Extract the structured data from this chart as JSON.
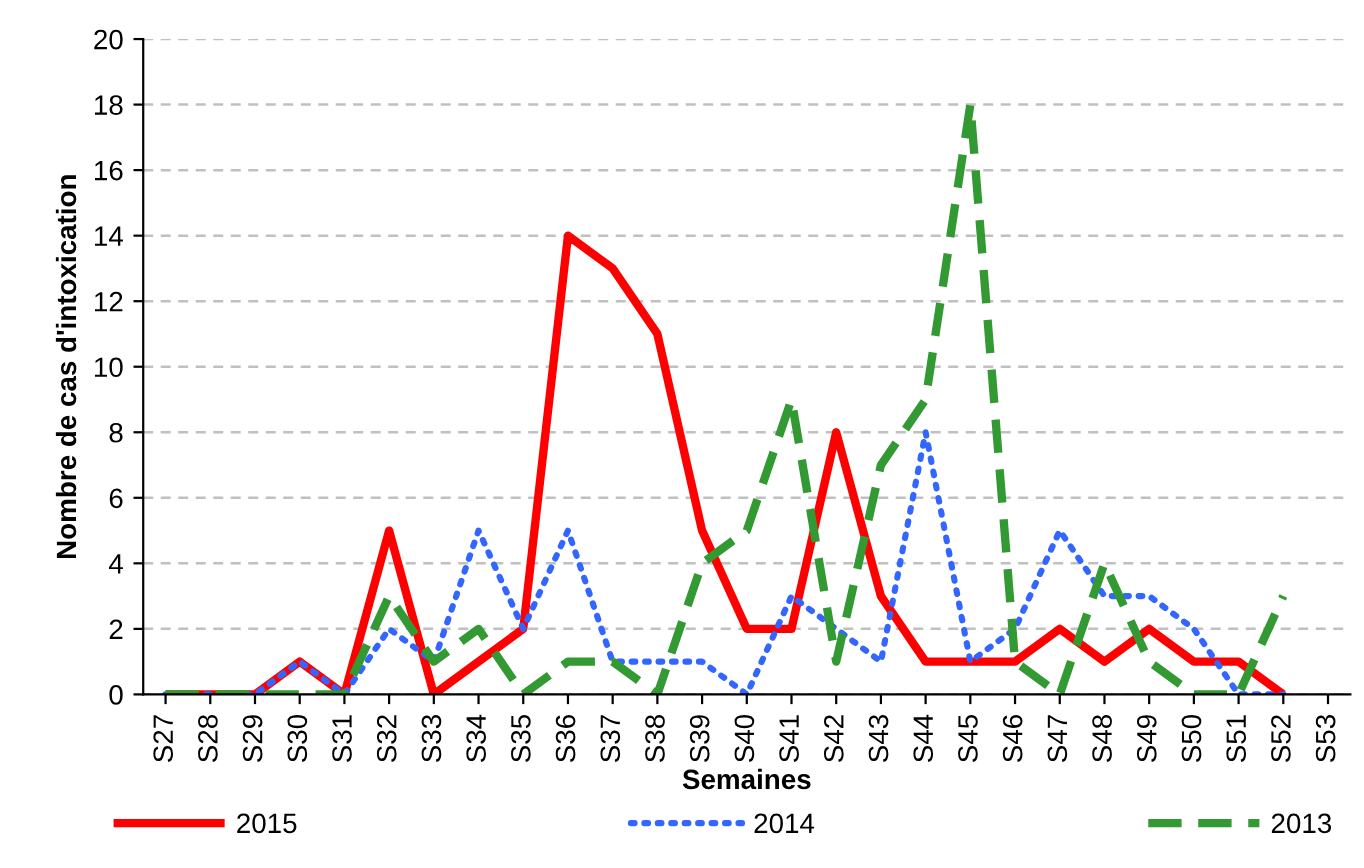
{
  "chart_data": {
    "type": "line",
    "xlabel": "Semaines",
    "ylabel": "Nombre de cas d'intoxication",
    "categories": [
      "S27",
      "S28",
      "S29",
      "S30",
      "S31",
      "S32",
      "S33",
      "S34",
      "S35",
      "S36",
      "S37",
      "S38",
      "S39",
      "S40",
      "S41",
      "S42",
      "S43",
      "S44",
      "S45",
      "S46",
      "S47",
      "S48",
      "S49",
      "S50",
      "S51",
      "S52",
      "S53"
    ],
    "series": [
      {
        "name": "2015",
        "color": "#ff0000",
        "line_style": "solid",
        "values": [
          0,
          0,
          0,
          1,
          0,
          5,
          0,
          1,
          2,
          14,
          13,
          11,
          5,
          2,
          2,
          8,
          3,
          1,
          1,
          1,
          2,
          1,
          2,
          1,
          1,
          0,
          null
        ]
      },
      {
        "name": "2014",
        "color": "#3366ff",
        "line_style": "dotted",
        "values": [
          0,
          0,
          0,
          1,
          0,
          2,
          1,
          5,
          2,
          5,
          1,
          1,
          1,
          0,
          3,
          2,
          1,
          8,
          1,
          2,
          5,
          3,
          3,
          2,
          0,
          0,
          null
        ]
      },
      {
        "name": "2013",
        "color": "#339933",
        "line_style": "dashed",
        "values": [
          0,
          0,
          0,
          0,
          0,
          3,
          1,
          2,
          0,
          1,
          1,
          0,
          4,
          5,
          9,
          1,
          7,
          9,
          18,
          1,
          0,
          4,
          1,
          0,
          0,
          3,
          null
        ]
      }
    ],
    "ylim": [
      0,
      20
    ],
    "yticks": [
      0,
      2,
      4,
      6,
      8,
      10,
      12,
      14,
      16,
      18,
      20
    ],
    "grid": "y",
    "legend": "bottom",
    "marker": "none"
  }
}
